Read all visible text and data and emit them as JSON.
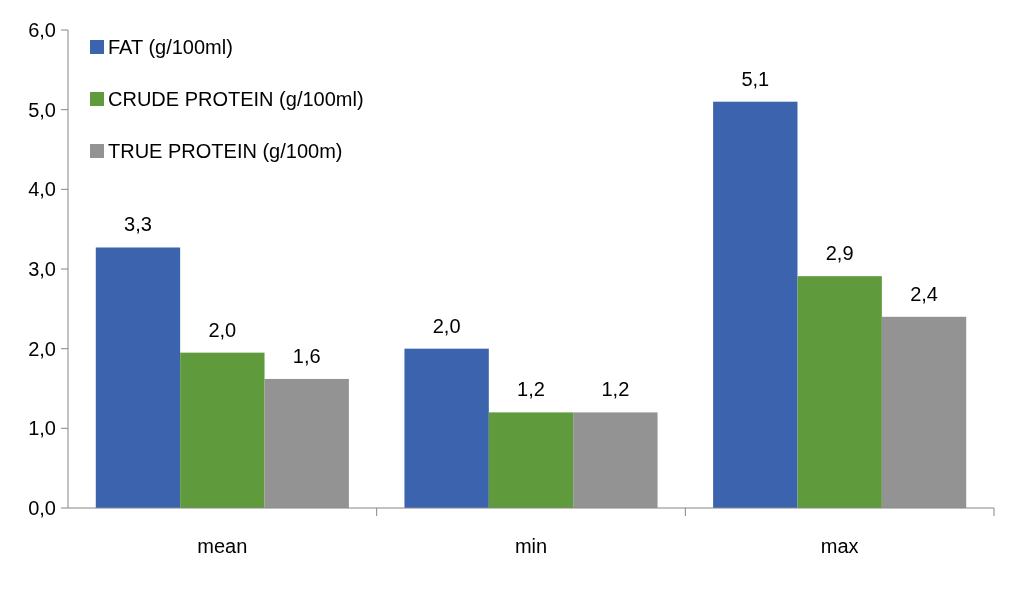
{
  "chart_data": {
    "type": "bar",
    "categories": [
      "mean",
      "min",
      "max"
    ],
    "series": [
      {
        "name": "FAT  (g/100ml)",
        "color": "#3c64ae",
        "values": [
          3.27,
          2.0,
          5.1
        ],
        "value_labels": [
          "3,3",
          "2,0",
          "5,1"
        ]
      },
      {
        "name": "CRUDE PROTEIN (g/100ml)",
        "color": "#5f9a3c",
        "values": [
          1.95,
          1.2,
          2.91
        ],
        "value_labels": [
          "2,0",
          "1,2",
          "2,9"
        ]
      },
      {
        "name": "TRUE PROTEIN (g/100m)",
        "color": "#939393",
        "values": [
          1.62,
          1.2,
          2.4
        ],
        "value_labels": [
          "1,6",
          "1,2",
          "2,4"
        ]
      }
    ],
    "ylim": [
      0,
      6
    ],
    "yticks": [
      {
        "value": 0,
        "label": "0,0"
      },
      {
        "value": 1,
        "label": "1,0"
      },
      {
        "value": 2,
        "label": "2,0"
      },
      {
        "value": 3,
        "label": "3,0"
      },
      {
        "value": 4,
        "label": "4,0"
      },
      {
        "value": 5,
        "label": "5,0"
      },
      {
        "value": 6,
        "label": "6,0"
      }
    ],
    "grid": false,
    "legend": "top left"
  }
}
